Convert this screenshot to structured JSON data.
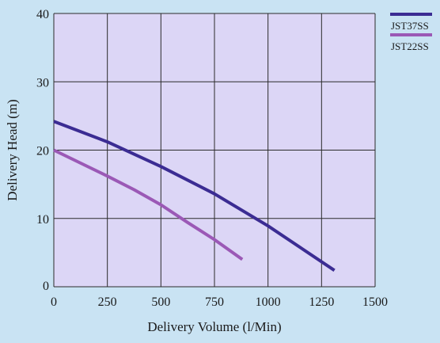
{
  "chart_data": {
    "type": "line",
    "xlabel": "Delivery Volume (l/Min)",
    "ylabel": "Delivery Head (m)",
    "xlim": [
      0,
      1500
    ],
    "ylim": [
      0,
      40
    ],
    "x_ticks": [
      "0",
      "250",
      "500",
      "750",
      "1000",
      "1250",
      "1500"
    ],
    "y_ticks": [
      "0",
      "10",
      "20",
      "30",
      "40"
    ],
    "grid": true,
    "legend_position": "top-right",
    "colors": {
      "background": "#c9e3f3",
      "plot_area": "#dcd6f6",
      "grid": "#2b2b2b"
    },
    "series": [
      {
        "name": "JST37SS",
        "color": "#3b2c93",
        "x": [
          0,
          250,
          500,
          750,
          1000,
          1310
        ],
        "y": [
          24.2,
          21.2,
          17.6,
          13.6,
          8.9,
          2.4
        ]
      },
      {
        "name": "JST22SS",
        "color": "#9b59b6",
        "x": [
          0,
          250,
          375,
          500,
          625,
          750,
          880
        ],
        "y": [
          20,
          16.2,
          14.2,
          12,
          9.4,
          6.9,
          4
        ]
      }
    ]
  }
}
